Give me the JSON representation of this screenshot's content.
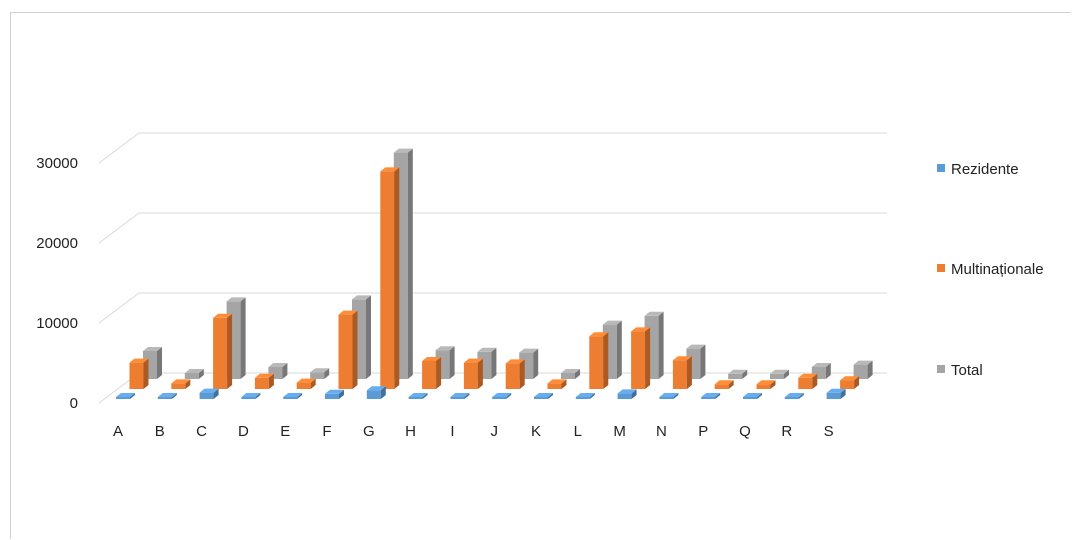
{
  "chart_data": {
    "type": "bar",
    "title": "",
    "xlabel": "",
    "ylabel": "",
    "ylim": [
      0,
      30000
    ],
    "y_ticks": [
      "0",
      "10000",
      "20000",
      "30000"
    ],
    "grid": true,
    "legend_position": "right",
    "categories": [
      "A",
      "B",
      "C",
      "D",
      "E",
      "F",
      "G",
      "H",
      "I",
      "J",
      "K",
      "L",
      "M",
      "N",
      "P",
      "Q",
      "R",
      "S"
    ],
    "series": [
      {
        "name": "Rezidente",
        "color": "#5B9BD5",
        "values": [
          150,
          50,
          800,
          80,
          50,
          650,
          1100,
          100,
          120,
          80,
          50,
          180,
          700,
          200,
          30,
          30,
          60,
          780
        ]
      },
      {
        "name": "Multinaționale",
        "color": "#ED7D31",
        "values": [
          3300,
          700,
          8900,
          1400,
          800,
          9300,
          27200,
          3500,
          3300,
          3200,
          700,
          6600,
          7200,
          3600,
          600,
          600,
          1400,
          1100
        ]
      },
      {
        "name": "Total",
        "color": "#A5A5A5",
        "values": [
          3500,
          750,
          9700,
          1500,
          850,
          9950,
          28300,
          3600,
          3400,
          3300,
          750,
          6800,
          7900,
          3800,
          650,
          650,
          1500,
          1800
        ]
      }
    ]
  }
}
